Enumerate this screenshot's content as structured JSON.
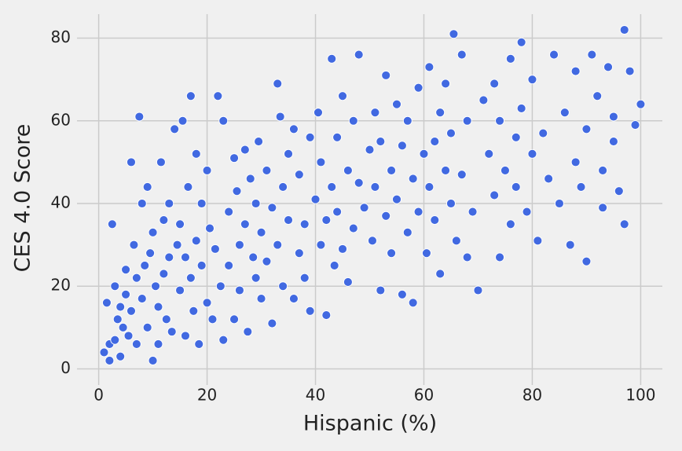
{
  "chart_data": {
    "type": "scatter",
    "x_label": "Hispanic (%)",
    "y_label": "CES 4.0 Score",
    "color": "#4169e1",
    "grid": true,
    "xlim": [
      -4,
      104
    ],
    "ylim": [
      -3.9,
      85.8
    ],
    "xticks": [
      0,
      20,
      40,
      60,
      80,
      100
    ],
    "yticks": [
      0,
      20,
      40,
      60,
      80
    ],
    "x": [
      1,
      1.5,
      2,
      2,
      2.5,
      3,
      3,
      3.5,
      4,
      4,
      4.5,
      5,
      5,
      5.5,
      6,
      6,
      6.5,
      7,
      7,
      7.5,
      8,
      8,
      8.5,
      9,
      9,
      9.5,
      10,
      10,
      10.5,
      11,
      11,
      11.5,
      12,
      12,
      12.5,
      13,
      13,
      13.5,
      14,
      14.5,
      15,
      15,
      15.5,
      16,
      16,
      16.5,
      17,
      17,
      17.5,
      18,
      18,
      18.5,
      19,
      19,
      20,
      20,
      20.5,
      21,
      21.5,
      22,
      22.5,
      23,
      23,
      24,
      24,
      25,
      25,
      25.5,
      26,
      26,
      27,
      27,
      27.5,
      28,
      28.5,
      29,
      29,
      29.5,
      30,
      30,
      31,
      31,
      32,
      32,
      33,
      33,
      33.5,
      34,
      34,
      35,
      35,
      36,
      36,
      37,
      37,
      38,
      38,
      39,
      39,
      40,
      40.5,
      41,
      41,
      42,
      42,
      43,
      43,
      43.5,
      44,
      44,
      45,
      45,
      46,
      46,
      47,
      47,
      48,
      48,
      49,
      50,
      50.5,
      51,
      51,
      52,
      52,
      53,
      53,
      54,
      54,
      55,
      55,
      56,
      56,
      57,
      57,
      58,
      58,
      59,
      59,
      60,
      60.5,
      61,
      61,
      62,
      62,
      63,
      63,
      64,
      64,
      65,
      65,
      65.5,
      66,
      67,
      67,
      68,
      68,
      69,
      70,
      71,
      72,
      73,
      73,
      74,
      74,
      75,
      76,
      76,
      77,
      77,
      78,
      78,
      79,
      80,
      80,
      81,
      82,
      83,
      84,
      85,
      86,
      87,
      88,
      88,
      89,
      90,
      90,
      91,
      92,
      93,
      93,
      94,
      95,
      95,
      96,
      97,
      97,
      98,
      99,
      100
    ],
    "y": [
      4,
      16,
      6,
      2,
      35,
      7,
      20,
      12,
      15,
      3,
      10,
      24,
      18,
      8,
      50,
      14,
      30,
      22,
      6,
      61,
      40,
      17,
      25,
      10,
      44,
      28,
      2,
      33,
      20,
      15,
      6,
      50,
      23,
      36,
      12,
      40,
      27,
      9,
      58,
      30,
      19,
      35,
      60,
      8,
      27,
      44,
      66,
      22,
      14,
      52,
      31,
      6,
      25,
      40,
      16,
      48,
      34,
      12,
      29,
      66,
      20,
      60,
      7,
      38,
      25,
      51,
      12,
      43,
      30,
      19,
      53,
      35,
      9,
      46,
      27,
      40,
      22,
      55,
      17,
      33,
      48,
      26,
      39,
      11,
      69,
      30,
      61,
      44,
      20,
      52,
      36,
      17,
      58,
      28,
      47,
      35,
      22,
      56,
      14,
      41,
      62,
      30,
      50,
      13,
      36,
      75,
      44,
      25,
      56,
      38,
      66,
      29,
      48,
      21,
      60,
      34,
      76,
      45,
      39,
      53,
      31,
      62,
      44,
      19,
      55,
      71,
      37,
      48,
      28,
      64,
      41,
      18,
      54,
      33,
      60,
      16,
      46,
      68,
      38,
      52,
      28,
      73,
      44,
      55,
      36,
      62,
      23,
      48,
      69,
      40,
      57,
      81,
      31,
      76,
      47,
      60,
      27,
      38,
      19,
      65,
      52,
      42,
      69,
      27,
      60,
      48,
      75,
      35,
      56,
      44,
      79,
      63,
      38,
      52,
      70,
      31,
      57,
      46,
      76,
      40,
      62,
      30,
      50,
      72,
      44,
      26,
      58,
      76,
      66,
      48,
      39,
      73,
      55,
      61,
      43,
      82,
      35,
      72,
      59,
      64
    ]
  }
}
